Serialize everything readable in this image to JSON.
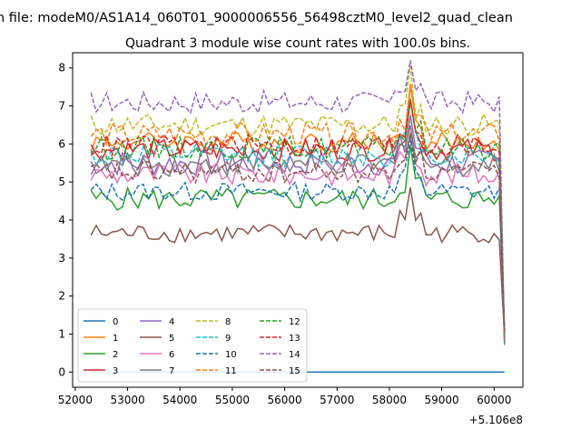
{
  "chart_data": {
    "type": "line",
    "suptitle": "n file: modeM0/AS1A14_060T01_9000006556_56498cztM0_level2_quad_clean",
    "title": "Quadrant 3 module wise count rates with 100.0s bins.",
    "xlabel": "",
    "ylabel": "",
    "x_offset_label": "+5.106e8",
    "x_axis_ticks": [
      52000,
      53000,
      54000,
      55000,
      56000,
      57000,
      58000,
      59000,
      60000
    ],
    "y_axis_ticks": [
      0,
      1,
      2,
      3,
      4,
      5,
      6,
      7,
      8
    ],
    "xlim": [
      51950,
      60550
    ],
    "ylim": [
      -0.4,
      8.4
    ],
    "grid": false,
    "legend_placement": "lower-left",
    "legend_columns": 4,
    "x_start": 52300,
    "x_step": 100,
    "series": [
      {
        "name": "0",
        "color": "#1f77b4",
        "dash": "solid",
        "base": 0.0,
        "amp": 0.0,
        "seed": 0
      },
      {
        "name": "1",
        "color": "#ff7f0e",
        "dash": "solid",
        "base": 6.05,
        "amp": 0.28,
        "seed": 1
      },
      {
        "name": "2",
        "color": "#2ca02c",
        "dash": "solid",
        "base": 4.55,
        "amp": 0.3,
        "seed": 2
      },
      {
        "name": "3",
        "color": "#d62728",
        "dash": "solid",
        "base": 5.85,
        "amp": 0.3,
        "seed": 3
      },
      {
        "name": "4",
        "color": "#9467bd",
        "dash": "solid",
        "base": 5.5,
        "amp": 0.35,
        "seed": 4
      },
      {
        "name": "5",
        "color": "#8c564b",
        "dash": "solid",
        "base": 3.65,
        "amp": 0.25,
        "seed": 5
      },
      {
        "name": "6",
        "color": "#e377c2",
        "dash": "solid",
        "base": 5.2,
        "amp": 0.3,
        "seed": 6
      },
      {
        "name": "7",
        "color": "#7f7f7f",
        "dash": "solid",
        "base": 5.45,
        "amp": 0.3,
        "seed": 7
      },
      {
        "name": "8",
        "color": "#bcbd22",
        "dash": "dashed",
        "base": 6.5,
        "amp": 0.3,
        "seed": 8
      },
      {
        "name": "9",
        "color": "#17becf",
        "dash": "dashed",
        "base": 5.7,
        "amp": 0.3,
        "seed": 9
      },
      {
        "name": "10",
        "color": "#1f77b4",
        "dash": "dashed",
        "base": 4.75,
        "amp": 0.25,
        "seed": 10
      },
      {
        "name": "11",
        "color": "#ff7f0e",
        "dash": "dashed",
        "base": 6.25,
        "amp": 0.3,
        "seed": 11
      },
      {
        "name": "12",
        "color": "#2ca02c",
        "dash": "dashed",
        "base": 5.9,
        "amp": 0.3,
        "seed": 12
      },
      {
        "name": "13",
        "color": "#d62728",
        "dash": "dashed",
        "base": 5.95,
        "amp": 0.3,
        "seed": 13
      },
      {
        "name": "14",
        "color": "#9467bd",
        "dash": "dashed",
        "base": 7.1,
        "amp": 0.3,
        "seed": 14
      },
      {
        "name": "15",
        "color": "#8c564b",
        "dash": "dashed",
        "base": 5.25,
        "amp": 0.3,
        "seed": 15
      }
    ]
  }
}
